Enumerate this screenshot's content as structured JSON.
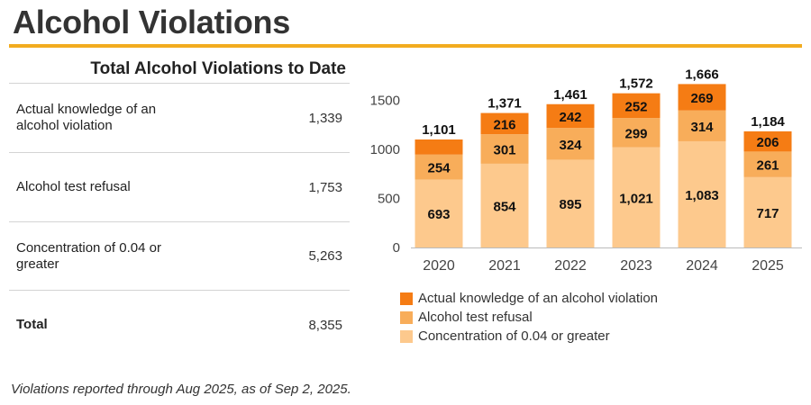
{
  "page": {
    "title": "Alcohol Violations",
    "footnote": "Violations reported through Aug 2025, as of Sep 2, 2025."
  },
  "summary": {
    "heading": "Total Alcohol Violations to Date",
    "rows": [
      {
        "label": "Actual knowledge of an alcohol violation",
        "value": "1,339"
      },
      {
        "label": "Alcohol test refusal",
        "value": "1,753"
      },
      {
        "label": "Concentration of 0.04 or greater",
        "value": "5,263"
      }
    ],
    "total": {
      "label": "Total",
      "value": "8,355"
    }
  },
  "colors": {
    "accent_rule": "#f2ac1f",
    "actual_knowledge": "#f57c14",
    "test_refusal": "#f8ad5a",
    "concentration": "#fdc98d"
  },
  "chart_data": {
    "type": "bar",
    "stacked": true,
    "categories": [
      "2020",
      "2021",
      "2022",
      "2023",
      "2024",
      "2025"
    ],
    "series": [
      {
        "name": "Concentration of 0.04 or greater",
        "values": [
          693,
          854,
          895,
          1021,
          1083,
          717
        ]
      },
      {
        "name": "Alcohol test refusal",
        "values": [
          254,
          301,
          324,
          299,
          314,
          261
        ]
      },
      {
        "name": "Actual knowledge of an alcohol violation",
        "values": [
          154,
          216,
          242,
          252,
          269,
          206
        ]
      }
    ],
    "totals": [
      "1,101",
      "1,371",
      "1,461",
      "1,572",
      "1,666",
      "1,184"
    ],
    "segment_labels_shown": [
      [
        "693",
        "854",
        "895",
        "1,021",
        "1,083",
        "717"
      ],
      [
        "254",
        "301",
        "324",
        "299",
        "314",
        "261"
      ],
      [
        "",
        "216",
        "242",
        "252",
        "269",
        "206"
      ]
    ],
    "y_ticks": [
      0,
      500,
      1000,
      1500
    ],
    "ylim": [
      0,
      1700
    ],
    "grid": false,
    "legend_position": "bottom-left",
    "legend_entries": [
      "Actual knowledge of an alcohol violation",
      "Alcohol test refusal",
      "Concentration of 0.04 or greater"
    ]
  }
}
